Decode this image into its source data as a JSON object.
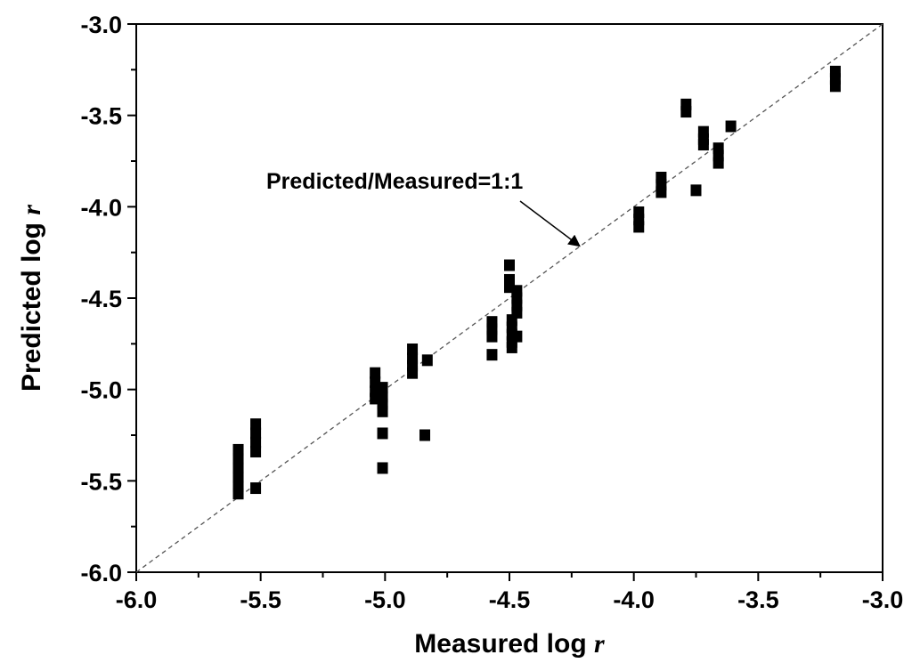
{
  "chart_data": {
    "type": "scatter",
    "title": "",
    "xlabel": "Measured log",
    "xlabel_var": "r",
    "ylabel": "Predicted log",
    "ylabel_var": "r",
    "xlim": [
      -6.0,
      -3.0
    ],
    "ylim": [
      -6.0,
      -3.0
    ],
    "x_ticks": [
      {
        "value": -6.0,
        "label": "-6.0"
      },
      {
        "value": -5.5,
        "label": "-5.5"
      },
      {
        "value": -5.0,
        "label": "-5.0"
      },
      {
        "value": -4.5,
        "label": "-4.5"
      },
      {
        "value": -4.0,
        "label": "-4.0"
      },
      {
        "value": -3.5,
        "label": "-3.5"
      },
      {
        "value": -3.0,
        "label": "-3.0"
      }
    ],
    "y_ticks": [
      {
        "value": -6.0,
        "label": "-6.0"
      },
      {
        "value": -5.5,
        "label": "-5.5"
      },
      {
        "value": -5.0,
        "label": "-5.0"
      },
      {
        "value": -4.5,
        "label": "-4.5"
      },
      {
        "value": -4.0,
        "label": "-4.0"
      },
      {
        "value": -3.5,
        "label": "-3.5"
      },
      {
        "value": -3.0,
        "label": "-3.0"
      }
    ],
    "grid": false,
    "marker_color": "#000000",
    "reference_line": {
      "from": [
        -6.0,
        -6.0
      ],
      "to": [
        -3.0,
        -3.0
      ],
      "style": "dashed",
      "color": "#555555"
    },
    "annotation": {
      "text": "Predicted/Measured=1:1",
      "target": [
        -4.2,
        -4.2
      ]
    },
    "points": [
      {
        "x": -5.59,
        "y": -5.33
      },
      {
        "x": -5.59,
        "y": -5.38
      },
      {
        "x": -5.59,
        "y": -5.43
      },
      {
        "x": -5.59,
        "y": -5.48
      },
      {
        "x": -5.59,
        "y": -5.53
      },
      {
        "x": -5.59,
        "y": -5.57
      },
      {
        "x": -5.52,
        "y": -5.19
      },
      {
        "x": -5.52,
        "y": -5.24
      },
      {
        "x": -5.52,
        "y": -5.29
      },
      {
        "x": -5.52,
        "y": -5.34
      },
      {
        "x": -5.52,
        "y": -5.54
      },
      {
        "x": -5.04,
        "y": -4.91
      },
      {
        "x": -5.04,
        "y": -4.96
      },
      {
        "x": -5.04,
        "y": -5.01
      },
      {
        "x": -5.04,
        "y": -5.05
      },
      {
        "x": -5.01,
        "y": -4.99
      },
      {
        "x": -5.01,
        "y": -5.04
      },
      {
        "x": -5.01,
        "y": -5.08
      },
      {
        "x": -5.01,
        "y": -5.12
      },
      {
        "x": -5.01,
        "y": -5.24
      },
      {
        "x": -5.01,
        "y": -5.43
      },
      {
        "x": -4.89,
        "y": -4.78
      },
      {
        "x": -4.89,
        "y": -4.83
      },
      {
        "x": -4.89,
        "y": -4.87
      },
      {
        "x": -4.89,
        "y": -4.91
      },
      {
        "x": -4.83,
        "y": -4.84
      },
      {
        "x": -4.84,
        "y": -5.25
      },
      {
        "x": -4.57,
        "y": -4.63
      },
      {
        "x": -4.57,
        "y": -4.67
      },
      {
        "x": -4.57,
        "y": -4.71
      },
      {
        "x": -4.57,
        "y": -4.81
      },
      {
        "x": -4.5,
        "y": -4.32
      },
      {
        "x": -4.5,
        "y": -4.4
      },
      {
        "x": -4.5,
        "y": -4.44
      },
      {
        "x": -4.49,
        "y": -4.62
      },
      {
        "x": -4.49,
        "y": -4.66
      },
      {
        "x": -4.49,
        "y": -4.7
      },
      {
        "x": -4.49,
        "y": -4.74
      },
      {
        "x": -4.49,
        "y": -4.77
      },
      {
        "x": -4.47,
        "y": -4.46
      },
      {
        "x": -4.47,
        "y": -4.5
      },
      {
        "x": -4.47,
        "y": -4.54
      },
      {
        "x": -4.47,
        "y": -4.58
      },
      {
        "x": -4.47,
        "y": -4.71
      },
      {
        "x": -3.98,
        "y": -4.03
      },
      {
        "x": -3.98,
        "y": -4.07
      },
      {
        "x": -3.98,
        "y": -4.11
      },
      {
        "x": -3.89,
        "y": -3.84
      },
      {
        "x": -3.89,
        "y": -3.88
      },
      {
        "x": -3.89,
        "y": -3.92
      },
      {
        "x": -3.79,
        "y": -3.44
      },
      {
        "x": -3.79,
        "y": -3.48
      },
      {
        "x": -3.75,
        "y": -3.91
      },
      {
        "x": -3.72,
        "y": -3.59
      },
      {
        "x": -3.72,
        "y": -3.63
      },
      {
        "x": -3.72,
        "y": -3.66
      },
      {
        "x": -3.66,
        "y": -3.68
      },
      {
        "x": -3.66,
        "y": -3.72
      },
      {
        "x": -3.66,
        "y": -3.76
      },
      {
        "x": -3.61,
        "y": -3.56
      },
      {
        "x": -3.19,
        "y": -3.26
      },
      {
        "x": -3.19,
        "y": -3.3
      },
      {
        "x": -3.19,
        "y": -3.34
      }
    ]
  }
}
